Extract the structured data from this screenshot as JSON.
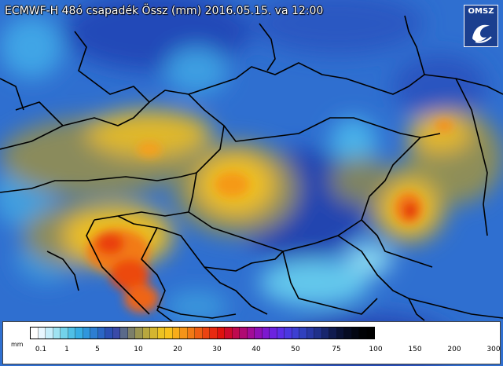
{
  "title": "ECMWF-H 48ó csapadék Össz (mm) 2016.05.15. va 12:00",
  "logo": {
    "text": "OMSZ"
  },
  "legend": {
    "unit": "mm",
    "ticks": [
      "0.1",
      "1",
      "5",
      "10",
      "20",
      "30",
      "40",
      "50",
      "75",
      "100",
      "150",
      "200",
      "300"
    ],
    "colors": [
      "#ffffff",
      "#e8f7ff",
      "#c6eefb",
      "#9fe3f2",
      "#73d3ea",
      "#4fc0e6",
      "#37aee4",
      "#2f96dc",
      "#2d7ed2",
      "#2b66c5",
      "#2b50b4",
      "#3a4aa8",
      "#5a6a8a",
      "#7c7f6a",
      "#9b9551",
      "#b8a73e",
      "#d4b52f",
      "#ecc222",
      "#f8c21c",
      "#f7ad1a",
      "#f59418",
      "#f27a15",
      "#ef5f13",
      "#ec4411",
      "#e82a10",
      "#e0120e",
      "#cf0a2c",
      "#bf0a4f",
      "#b00a73",
      "#a20c97",
      "#8f10b5",
      "#7d18cf",
      "#6c22df",
      "#5b2ee6",
      "#4a38e0",
      "#3d3fd1",
      "#3040be",
      "#2838a5",
      "#20308a",
      "#18266d",
      "#101b4f",
      "#0a1236",
      "#060b22",
      "#030612",
      "#010205",
      "#000000"
    ]
  }
}
